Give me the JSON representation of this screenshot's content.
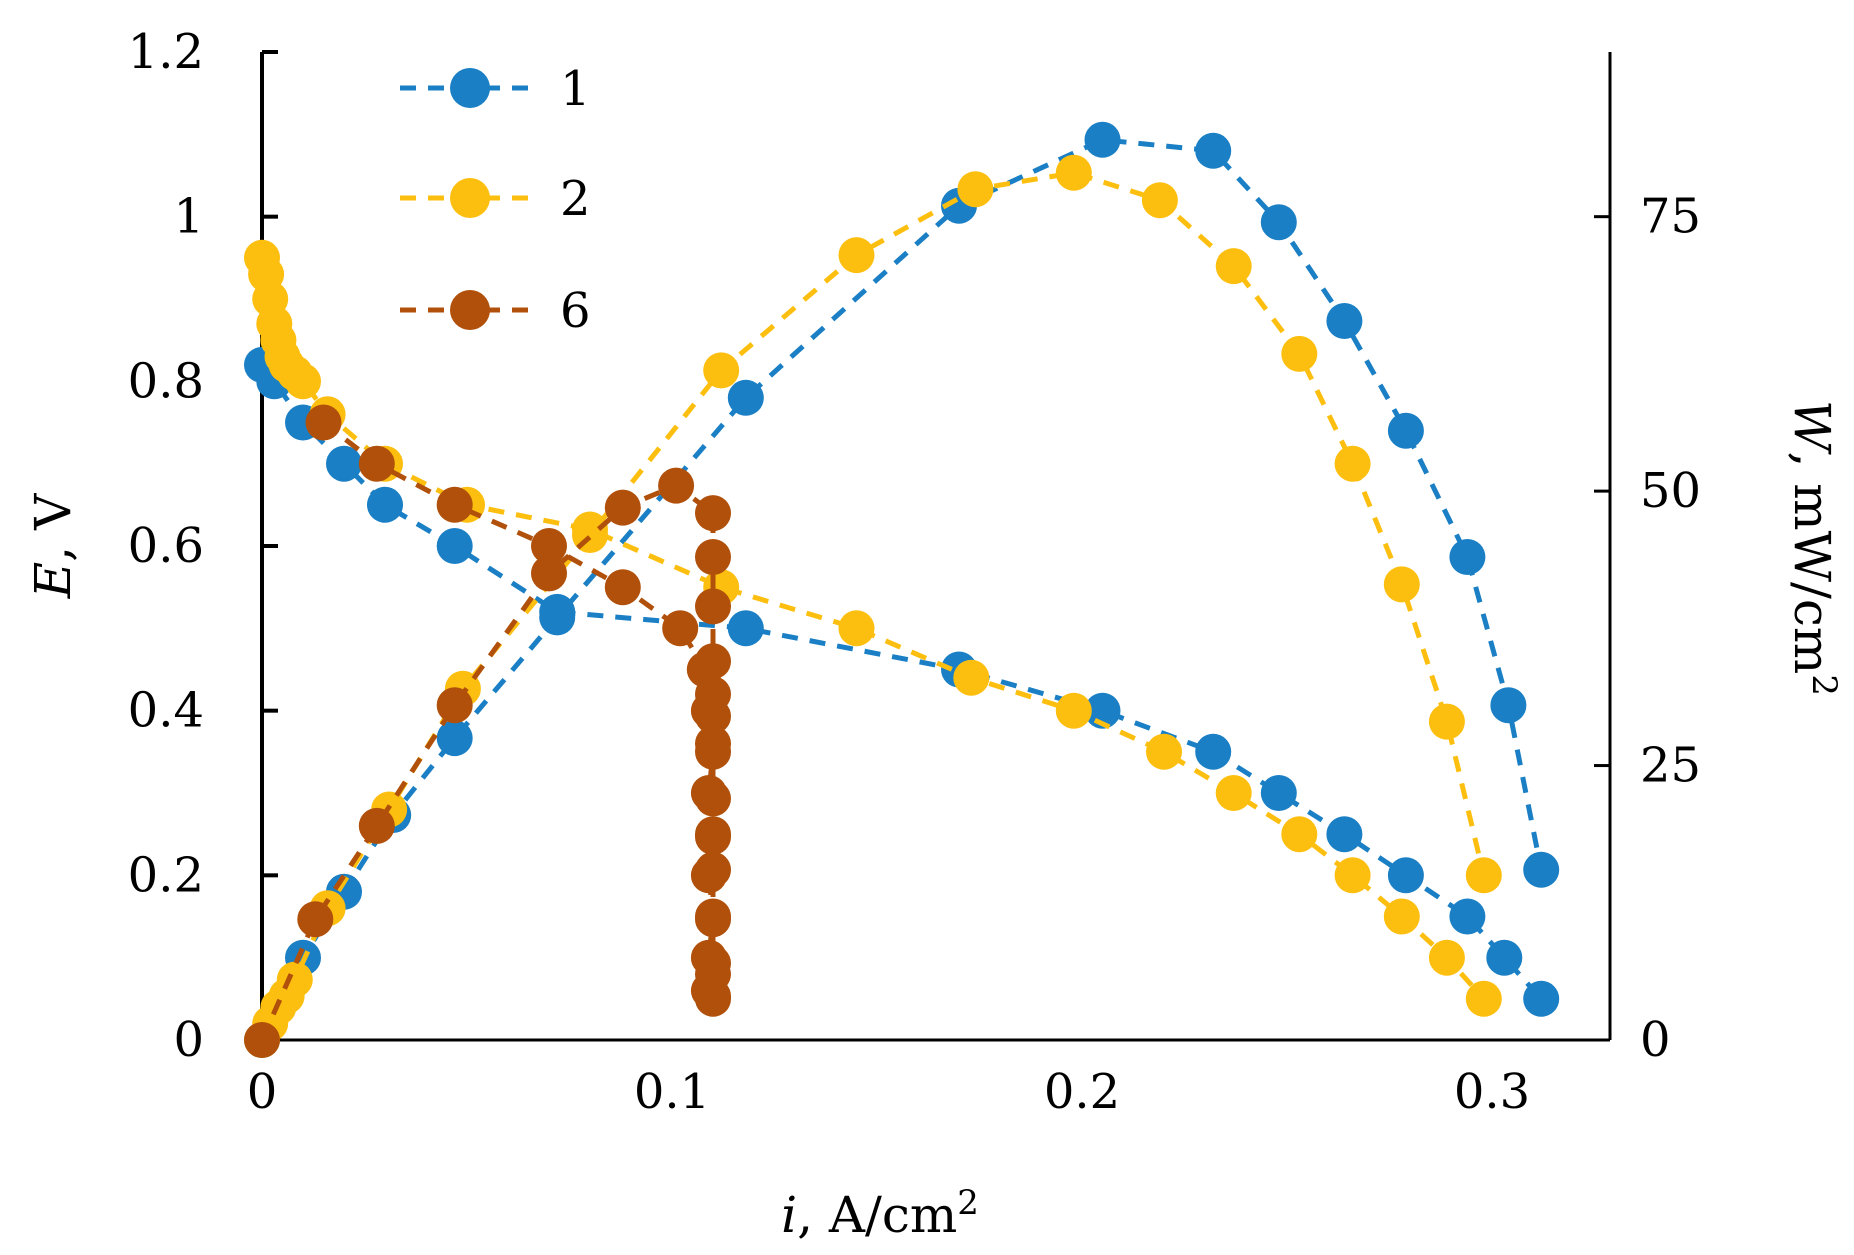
{
  "chart_data": {
    "type": "line",
    "title": "",
    "xlabel": {
      "var": "i",
      "unit": ", A/cm",
      "sup": "2"
    },
    "ylabel": {
      "var": "E",
      "unit": ", V"
    },
    "y2label": {
      "var": "W",
      "unit": ", mW/cm",
      "sup": "2"
    },
    "xlim": [
      0,
      0.33
    ],
    "ylim": [
      0,
      1.2
    ],
    "y2lim": [
      0,
      90
    ],
    "xticks": [
      "0",
      "0.1",
      "0.2",
      "0.3"
    ],
    "xtick_values": [
      0,
      0.1,
      0.2,
      0.3
    ],
    "yticks": [
      "0",
      "0.2",
      "0.4",
      "0.6",
      "0.8",
      "1",
      "1.2"
    ],
    "ytick_values": [
      0,
      0.2,
      0.4,
      0.6,
      0.8,
      1.0,
      1.2
    ],
    "y2ticks": [
      "0",
      "25",
      "50",
      "75"
    ],
    "y2tick_values": [
      0,
      25,
      50,
      75
    ],
    "legend_position": "top-left",
    "series": [
      {
        "name": "1",
        "color": "#1a7fc4",
        "polarization": {
          "x": [
            0,
            0.003,
            0.01,
            0.02,
            0.03,
            0.047,
            0.072,
            0.118,
            0.17,
            0.205,
            0.232,
            0.248,
            0.264,
            0.279,
            0.294,
            0.303,
            0.312
          ],
          "y": [
            0.82,
            0.8,
            0.75,
            0.7,
            0.65,
            0.6,
            0.52,
            0.5,
            0.45,
            0.4,
            0.35,
            0.3,
            0.25,
            0.2,
            0.15,
            0.1,
            0.05
          ]
        },
        "power": {
          "x": [
            0,
            0.01,
            0.02,
            0.032,
            0.047,
            0.072,
            0.118,
            0.17,
            0.205,
            0.232,
            0.248,
            0.264,
            0.279,
            0.294,
            0.304,
            0.312
          ],
          "y": [
            0,
            7.5,
            13.5,
            20.5,
            27.5,
            38.5,
            58.5,
            76,
            82,
            81,
            74.5,
            65.5,
            55.5,
            44,
            30.5,
            15.5
          ]
        }
      },
      {
        "name": "2",
        "color": "#fdbf0f",
        "polarization": {
          "x": [
            0,
            0.001,
            0.002,
            0.003,
            0.004,
            0.005,
            0.006,
            0.008,
            0.01,
            0.016,
            0.03,
            0.05,
            0.08,
            0.112,
            0.145,
            0.173,
            0.198,
            0.22,
            0.237,
            0.253,
            0.266,
            0.278,
            0.289,
            0.298
          ],
          "y": [
            0.95,
            0.93,
            0.9,
            0.87,
            0.85,
            0.83,
            0.82,
            0.81,
            0.8,
            0.76,
            0.7,
            0.65,
            0.62,
            0.55,
            0.5,
            0.44,
            0.4,
            0.35,
            0.3,
            0.25,
            0.2,
            0.15,
            0.1,
            0.05
          ]
        },
        "power": {
          "x": [
            0,
            0.002,
            0.004,
            0.006,
            0.008,
            0.016,
            0.031,
            0.049,
            0.08,
            0.112,
            0.145,
            0.174,
            0.198,
            0.219,
            0.237,
            0.253,
            0.266,
            0.278,
            0.289,
            0.298
          ],
          "y": [
            0,
            1.5,
            3,
            4,
            5.5,
            12,
            21,
            32,
            46,
            61,
            71.5,
            77.5,
            79,
            76.5,
            70.5,
            62.5,
            52.5,
            41.5,
            29,
            15
          ]
        }
      },
      {
        "name": "6",
        "color": "#b0500a",
        "polarization": {
          "x": [
            0.015,
            0.028,
            0.047,
            0.07,
            0.088,
            0.102,
            0.108,
            0.109,
            0.11,
            0.109,
            0.11,
            0.109,
            0.11,
            0.109,
            0.11,
            0.109,
            0.11
          ],
          "y": [
            0.75,
            0.7,
            0.65,
            0.6,
            0.55,
            0.5,
            0.45,
            0.4,
            0.35,
            0.3,
            0.25,
            0.2,
            0.15,
            0.1,
            0.08,
            0.06,
            0.05
          ]
        },
        "power": {
          "x": [
            0,
            0.013,
            0.028,
            0.047,
            0.07,
            0.088,
            0.101,
            0.11,
            0.11,
            0.11,
            0.11,
            0.11,
            0.11,
            0.11,
            0.11,
            0.11,
            0.11,
            0.11,
            0.11,
            0.11
          ],
          "y": [
            0,
            11,
            19.5,
            30.5,
            42.5,
            48.5,
            50.5,
            48,
            44,
            39.5,
            34.5,
            31.5,
            29.5,
            27,
            22,
            18.5,
            15.5,
            11,
            7,
            4
          ]
        }
      }
    ]
  }
}
